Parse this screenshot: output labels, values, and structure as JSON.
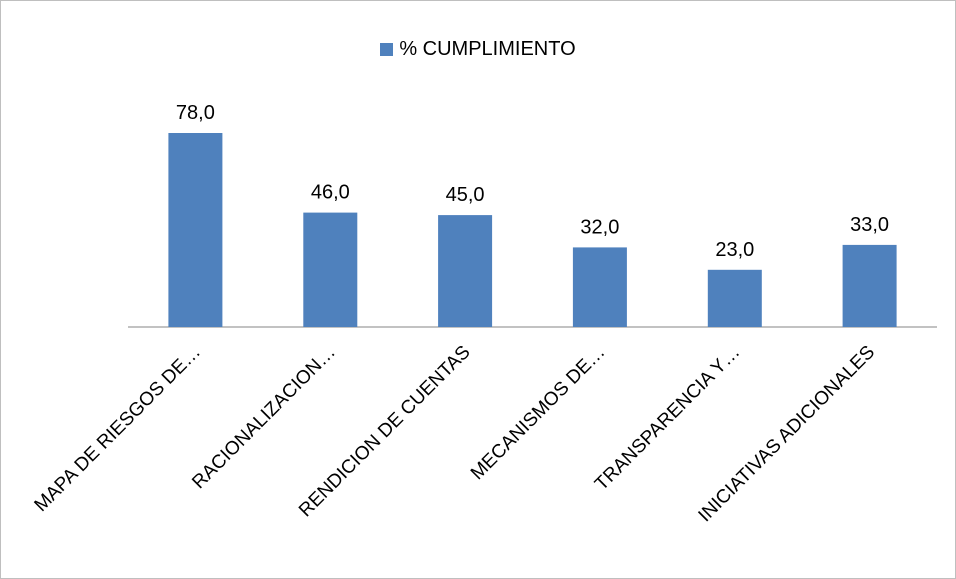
{
  "chart_data": {
    "type": "bar",
    "categories": [
      "MAPA DE RIESGOS DE…",
      "RACIONALIZACION…",
      "RENDICION DE CUENTAS",
      "MECANISMOS DE…",
      "TRANSPARENCIA Y…",
      "INICIATIVAS ADICIONALES"
    ],
    "series": [
      {
        "name": "% CUMPLIMIENTO",
        "values": [
          78.0,
          46.0,
          45.0,
          32.0,
          23.0,
          33.0
        ],
        "value_labels": [
          "78,0",
          "46,0",
          "45,0",
          "32,0",
          "23,0",
          "33,0"
        ]
      }
    ],
    "ylim": [
      0,
      100
    ],
    "grid": false,
    "legend_position": "top",
    "bar_color": "#4f81bd"
  }
}
